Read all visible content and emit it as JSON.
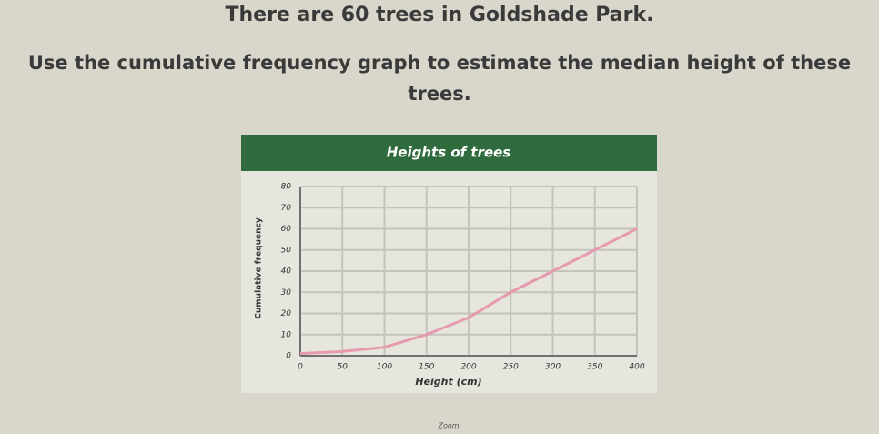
{
  "question": {
    "line1": "There are 60 trees in Goldshade Park.",
    "line2": "Use the cumulative frequency graph to estimate the median height of these trees."
  },
  "footer": "Zoom",
  "chart_data": {
    "type": "line",
    "title": "Heights of trees",
    "x_label": "Height (cm)",
    "y_label": "Cumulative frequency",
    "series": [
      {
        "name": "Cumulative frequency",
        "color": "#e79aae",
        "x": [
          0,
          50,
          100,
          150,
          200,
          250,
          300,
          350,
          400
        ],
        "values": [
          1,
          2,
          4,
          10,
          18,
          30,
          40,
          50,
          60
        ]
      }
    ],
    "xlim": [
      0,
      400
    ],
    "xticks": [
      0,
      50,
      100,
      150,
      200,
      250,
      300,
      350,
      400
    ],
    "ylim": [
      0,
      80
    ],
    "yticks": [
      0,
      10,
      20,
      30,
      40,
      50,
      60,
      70,
      80
    ],
    "grid": true
  }
}
